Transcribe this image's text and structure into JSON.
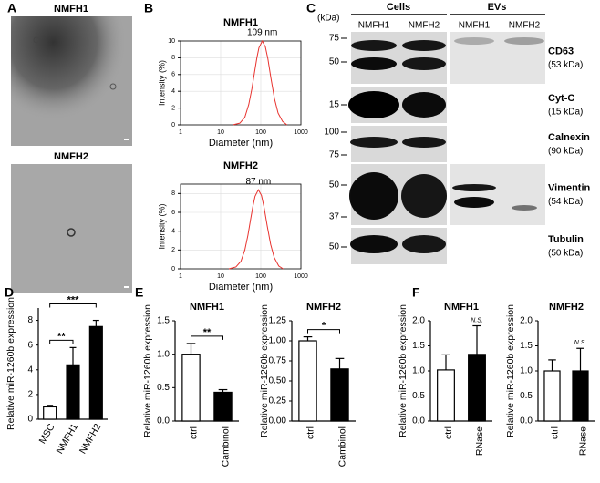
{
  "panel_labels": [
    "A",
    "B",
    "C",
    "D",
    "E",
    "F"
  ],
  "tem": {
    "images": [
      {
        "label": "NMFH1"
      },
      {
        "label": "NMFH2"
      }
    ]
  },
  "blot": {
    "unit": "(kDa)",
    "groups": [
      "Cells",
      "EVs"
    ],
    "lanes": [
      "NMFH1",
      "NMFH2",
      "NMFH1",
      "NMFH2"
    ],
    "rows": [
      {
        "markers": [
          75,
          50
        ],
        "name": "CD63",
        "size": "(53 kDa)"
      },
      {
        "markers": [
          15
        ],
        "name": "Cyt-C",
        "size": "(15 kDa)"
      },
      {
        "markers": [
          100,
          75
        ],
        "name": "Calnexin",
        "size": "(90 kDa)"
      },
      {
        "markers": [
          50,
          37
        ],
        "name": "Vimentin",
        "size": "(54 kDa)"
      },
      {
        "markers": [
          50
        ],
        "name": "Tubulin",
        "size": "(50 kDa)"
      }
    ]
  },
  "chart_data": [
    {
      "type": "line",
      "title": "NMFH1",
      "x": [
        20,
        30,
        40,
        50,
        60,
        70,
        80,
        90,
        109,
        130,
        150,
        180,
        220,
        270,
        350,
        450
      ],
      "values": [
        0,
        0.2,
        0.9,
        2.4,
        4.3,
        6.3,
        8.0,
        9.2,
        10,
        9.3,
        7.9,
        5.5,
        3.1,
        1.4,
        0.4,
        0
      ],
      "color": "#e8322e",
      "xlabel": "Diameter (nm)",
      "ylabel": "Intensity (%)",
      "xlim": [
        1,
        1000
      ],
      "xticks": [
        1,
        10,
        100,
        1000
      ],
      "log_x": true,
      "ylim": [
        0,
        10
      ],
      "yticks": [
        0,
        2,
        4,
        6,
        8,
        10
      ],
      "grid": true,
      "peak_label": "109 nm"
    },
    {
      "type": "line",
      "title": "NMFH2",
      "x": [
        16,
        24,
        32,
        40,
        48,
        56,
        64,
        72,
        87,
        104,
        120,
        144,
        176,
        216,
        280,
        360
      ],
      "values": [
        0,
        0.2,
        0.8,
        2.0,
        3.6,
        5.3,
        6.7,
        7.7,
        8.4,
        7.8,
        6.6,
        4.6,
        2.6,
        1.2,
        0.3,
        0
      ],
      "color": "#e8322e",
      "xlabel": "Diameter (nm)",
      "ylabel": "Intensity (%)",
      "xlim": [
        1,
        1000
      ],
      "xticks": [
        1,
        10,
        100,
        1000
      ],
      "log_x": true,
      "ylim": [
        0,
        9
      ],
      "yticks": [
        0,
        2,
        4,
        6,
        8
      ],
      "grid": true,
      "peak_label": "87 nm"
    },
    {
      "type": "bar",
      "categories": [
        "MSC",
        "NMFH1",
        "NMFH2"
      ],
      "values": [
        1.0,
        4.4,
        7.5
      ],
      "errors": [
        0.12,
        1.4,
        0.5
      ],
      "colors": [
        "#ffffff",
        "#000000",
        "#000000"
      ],
      "ylabel": "Relative miR-1260b expression",
      "ylim": [
        0,
        9
      ],
      "yticks": [
        0,
        2,
        4,
        6,
        8
      ],
      "significance": [
        {
          "label": "**",
          "between": [
            0,
            1
          ]
        },
        {
          "label": "***",
          "between": [
            0,
            2
          ]
        }
      ]
    },
    {
      "type": "bar",
      "title": "NMFH1",
      "categories": [
        "ctrl",
        "Cambinol"
      ],
      "values": [
        1.0,
        0.43
      ],
      "errors": [
        0.16,
        0.04
      ],
      "colors": [
        "#ffffff",
        "#000000"
      ],
      "ylabel": "Relative miR-1260b expression",
      "ylim": [
        0,
        1.5
      ],
      "yticks": [
        {
          "value": 0,
          "label": "0.0"
        },
        0.5,
        {
          "value": 1,
          "label": "1.0"
        },
        1.5
      ],
      "significance": [
        {
          "label": "**",
          "between": [
            0,
            1
          ]
        }
      ]
    },
    {
      "type": "bar",
      "title": "NMFH2",
      "categories": [
        "ctrl",
        "Cambinol"
      ],
      "values": [
        1.0,
        0.65
      ],
      "errors": [
        0.05,
        0.13
      ],
      "colors": [
        "#ffffff",
        "#000000"
      ],
      "ylabel": "Relative miR-1260b expression",
      "ylim": [
        0,
        1.25
      ],
      "yticks": [
        {
          "value": 0,
          "label": "0.00"
        },
        0.25,
        {
          "value": 0.5,
          "label": "0.50"
        },
        0.75,
        {
          "value": 1,
          "label": "1.00"
        },
        1.25
      ],
      "significance": [
        {
          "label": "*",
          "between": [
            0,
            1
          ]
        }
      ]
    },
    {
      "type": "bar",
      "title": "NMFH1",
      "categories": [
        "ctrl",
        "RNase"
      ],
      "values": [
        1.02,
        1.33
      ],
      "errors": [
        0.3,
        0.57
      ],
      "colors": [
        "#ffffff",
        "#000000"
      ],
      "ylabel": "Relative miR-1260b expression",
      "ylim": [
        0,
        2
      ],
      "yticks": [
        {
          "value": 0,
          "label": "0.0"
        },
        0.5,
        {
          "value": 1,
          "label": "1.0"
        },
        1.5,
        {
          "value": 2,
          "label": "2.0"
        }
      ],
      "significance": [
        {
          "label": "N.S.",
          "between": [
            1,
            1
          ]
        }
      ]
    },
    {
      "type": "bar",
      "title": "NMFH2",
      "categories": [
        "ctrl",
        "RNase"
      ],
      "values": [
        1.0,
        1.0
      ],
      "errors": [
        0.22,
        0.45
      ],
      "colors": [
        "#ffffff",
        "#000000"
      ],
      "ylabel": "Relative miR-1260b expression",
      "ylim": [
        0,
        2
      ],
      "yticks": [
        {
          "value": 0,
          "label": "0.0"
        },
        0.5,
        {
          "value": 1,
          "label": "1.0"
        },
        1.5,
        {
          "value": 2,
          "label": "2.0"
        }
      ],
      "significance": [
        {
          "label": "N.S.",
          "between": [
            1,
            1
          ]
        }
      ]
    }
  ]
}
